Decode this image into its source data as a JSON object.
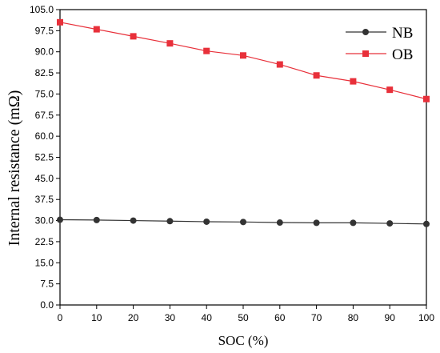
{
  "chart_data": {
    "type": "line",
    "title": "",
    "xlabel": "SOC (%)",
    "ylabel": "Internal resistance (mΩ)",
    "xlim": [
      0,
      100
    ],
    "ylim": [
      0,
      105
    ],
    "xticks": [
      0,
      10,
      20,
      30,
      40,
      50,
      60,
      70,
      80,
      90,
      100
    ],
    "yticks": [
      0.0,
      7.5,
      15.0,
      22.5,
      30.0,
      37.5,
      45.0,
      52.5,
      60.0,
      67.5,
      75.0,
      82.5,
      90.0,
      97.5,
      105.0
    ],
    "ytick_labels": [
      "0.0",
      "7.5",
      "15.0",
      "22.5",
      "30.0",
      "37.5",
      "45.0",
      "52.5",
      "60.0",
      "67.5",
      "75.0",
      "82.5",
      "90.0",
      "97.5",
      "105.0"
    ],
    "grid": false,
    "legend_position": "top-right",
    "x": [
      0,
      10,
      20,
      30,
      40,
      50,
      60,
      70,
      80,
      90,
      100
    ],
    "series": [
      {
        "name": "NB",
        "color": "#333333",
        "marker": "circle",
        "values": [
          30.3,
          30.2,
          30.0,
          29.8,
          29.6,
          29.5,
          29.3,
          29.2,
          29.2,
          29.0,
          28.8
        ]
      },
      {
        "name": "OB",
        "color": "#e8303a",
        "marker": "square",
        "values": [
          100.5,
          98.0,
          95.5,
          93.0,
          90.3,
          88.7,
          85.5,
          81.6,
          79.5,
          76.5,
          73.2
        ]
      }
    ]
  }
}
